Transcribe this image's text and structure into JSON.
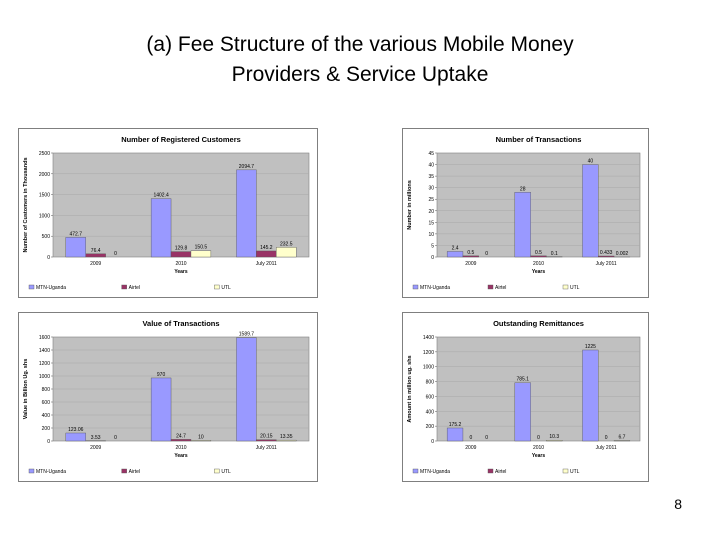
{
  "slide": {
    "title_line1": "(a) Fee Structure of the various Mobile Money",
    "title_line2": "Providers & Service Uptake",
    "page_number": "8"
  },
  "colors": {
    "MTN-Uganda": "#9999ff",
    "Airtel": "#993366",
    "UTL": "#ffffcc",
    "plot_bg": "#c0c0c0"
  },
  "chart_data": [
    {
      "type": "bar",
      "title": "Number of Registered Customers",
      "xlabel": "Years",
      "ylabel": "Number of Customers in Thousands",
      "categories": [
        "2009",
        "2010",
        "July 2011"
      ],
      "ylim": [
        0,
        2500
      ],
      "yticks": [
        "0",
        "500",
        "1000",
        "1500",
        "2000",
        "2500"
      ],
      "series": [
        {
          "name": "MTN-Uganda",
          "values": [
            472.7,
            1402.4,
            2094.7
          ],
          "labels": [
            "472.7",
            "1402.4",
            "2094.7"
          ]
        },
        {
          "name": "Airtel",
          "values": [
            76.4,
            129.8,
            145.2
          ],
          "labels": [
            "76.4",
            "129.8",
            "145.2"
          ]
        },
        {
          "name": "UTL",
          "values": [
            0,
            150.5,
            232.5
          ],
          "labels": [
            "0",
            "150.5",
            "232.5"
          ]
        }
      ],
      "legend": "bottom"
    },
    {
      "type": "bar",
      "title": "Number of Transactions",
      "xlabel": "Years",
      "ylabel": "Number in millions",
      "categories": [
        "2009",
        "2010",
        "July 2011"
      ],
      "ylim": [
        0,
        45
      ],
      "yticks": [
        "0",
        "5",
        "10",
        "15",
        "20",
        "25",
        "30",
        "35",
        "40",
        "45"
      ],
      "series": [
        {
          "name": "MTN-Uganda",
          "values": [
            2.4,
            28,
            40
          ],
          "labels": [
            "2.4",
            "28",
            "40"
          ]
        },
        {
          "name": "Airtel",
          "values": [
            0.5,
            0.5,
            0.433
          ],
          "labels": [
            "0.5",
            "0.5",
            "0.433"
          ]
        },
        {
          "name": "UTL",
          "values": [
            0,
            0.1,
            0.002
          ],
          "labels": [
            "0",
            "0.1",
            "0.002"
          ]
        }
      ],
      "legend": "bottom"
    },
    {
      "type": "bar",
      "title": "Value of Transactions",
      "xlabel": "Years",
      "ylabel": "Value in Billion Ug. shs",
      "categories": [
        "2009",
        "2010",
        "July 2011"
      ],
      "ylim": [
        0,
        1600
      ],
      "yticks": [
        "0",
        "200",
        "400",
        "600",
        "800",
        "1000",
        "1200",
        "1400",
        "1600"
      ],
      "series": [
        {
          "name": "MTN-Uganda",
          "values": [
            123.06,
            970,
            1589.7
          ],
          "labels": [
            "123.06",
            "970",
            "1589.7"
          ]
        },
        {
          "name": "Airtel",
          "values": [
            3.53,
            24.7,
            20.15
          ],
          "labels": [
            "3.53",
            "24.7",
            "20.15"
          ]
        },
        {
          "name": "UTL",
          "values": [
            0,
            10,
            13.35
          ],
          "labels": [
            "0",
            "10",
            "13.35"
          ]
        }
      ],
      "legend": "bottom"
    },
    {
      "type": "bar",
      "title": "Outstanding Remittances",
      "xlabel": "Years",
      "ylabel": "Amount in million ug. shs",
      "categories": [
        "2009",
        "2010",
        "July 2011"
      ],
      "ylim": [
        0,
        1400
      ],
      "yticks": [
        "0",
        "200",
        "400",
        "600",
        "800",
        "1000",
        "1200",
        "1400"
      ],
      "series": [
        {
          "name": "MTN-Uganda",
          "values": [
            175.2,
            785.1,
            1225
          ],
          "labels": [
            "175.2",
            "785.1",
            "1225"
          ]
        },
        {
          "name": "Airtel",
          "values": [
            0,
            0,
            0
          ],
          "labels": [
            "0",
            "0",
            "0"
          ]
        },
        {
          "name": "UTL",
          "values": [
            0,
            10.3,
            6.7
          ],
          "labels": [
            "0",
            "10.3",
            "6.7"
          ]
        }
      ],
      "legend": "bottom"
    }
  ]
}
